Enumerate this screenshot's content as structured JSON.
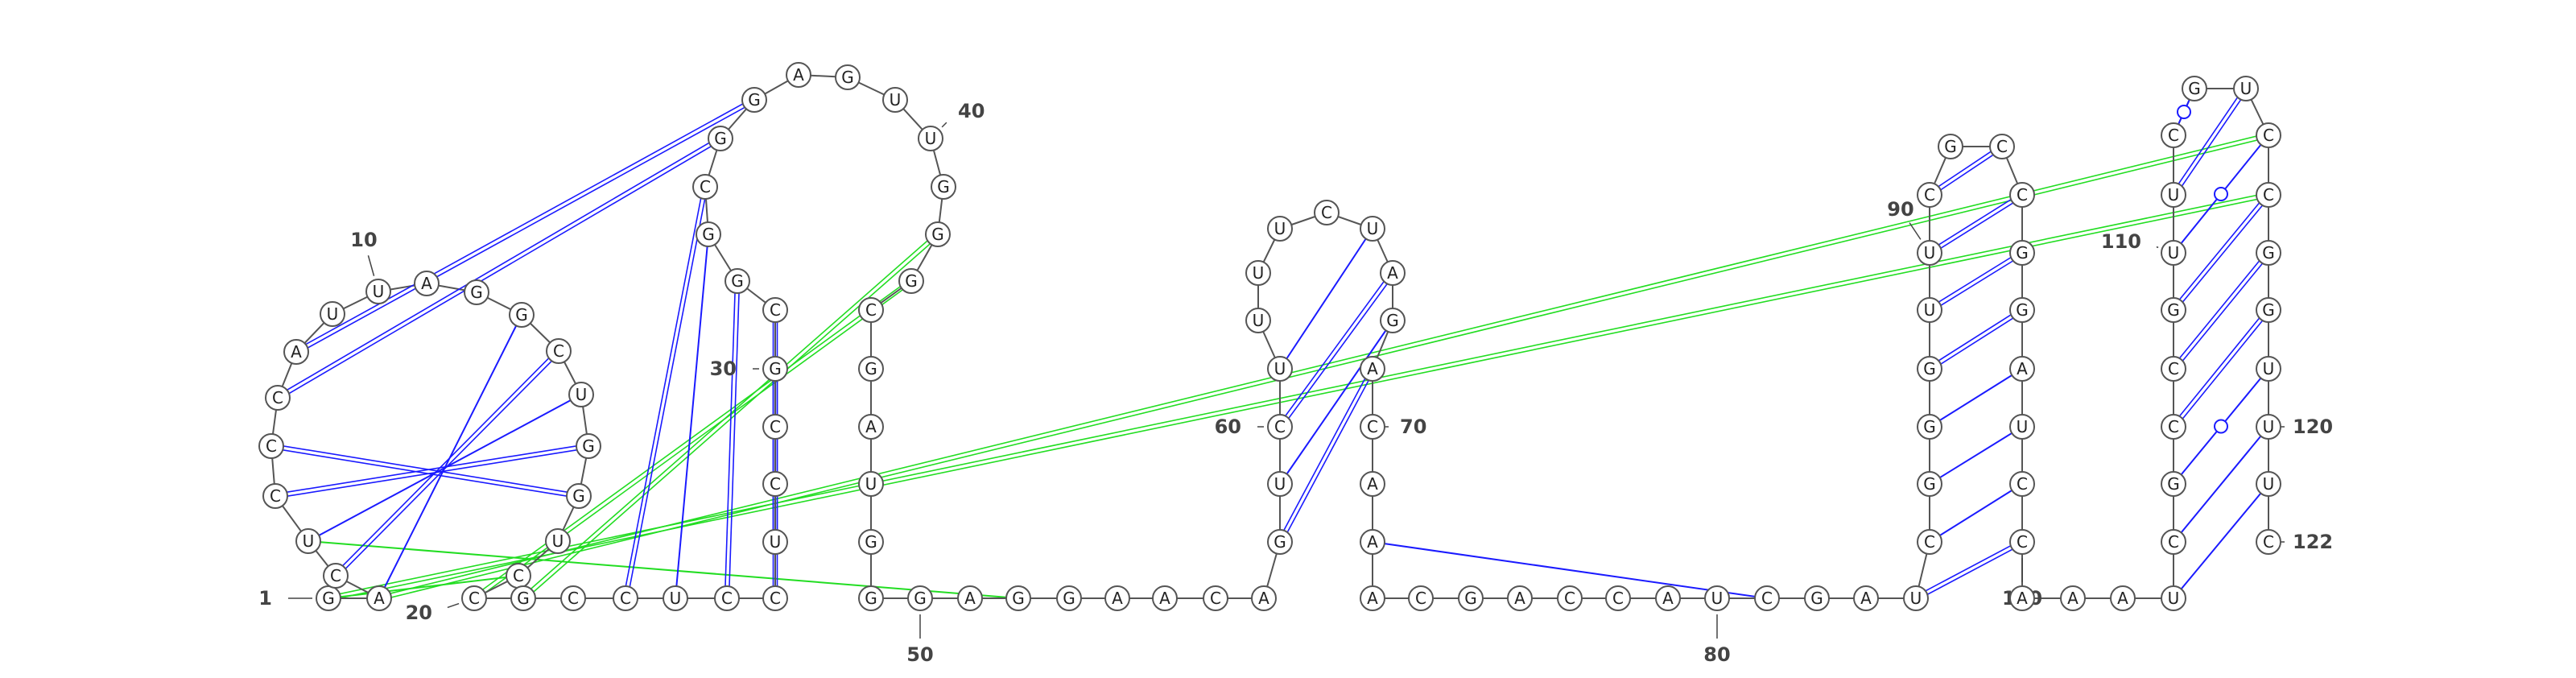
{
  "diagram": {
    "colors": {
      "backbone": "#555555",
      "canonical_pair": "#1a1aff",
      "noncanonical_pair": "#1a1aff",
      "pseudoknot": "#22dd22",
      "nucleotide_fill": "#ffffff",
      "nucleotide_stroke": "#555555",
      "label_text": "#444444"
    },
    "nucleotides": [
      {
        "n": 1,
        "base": "G"
      },
      {
        "n": 2,
        "base": "A"
      },
      {
        "n": 3,
        "base": "C"
      },
      {
        "n": 4,
        "base": "U"
      },
      {
        "n": 5,
        "base": "C"
      },
      {
        "n": 6,
        "base": "C"
      },
      {
        "n": 7,
        "base": "C"
      },
      {
        "n": 8,
        "base": "A"
      },
      {
        "n": 9,
        "base": "U"
      },
      {
        "n": 10,
        "base": "U"
      },
      {
        "n": 11,
        "base": "A"
      },
      {
        "n": 12,
        "base": "G"
      },
      {
        "n": 13,
        "base": "G"
      },
      {
        "n": 14,
        "base": "C"
      },
      {
        "n": 15,
        "base": "U"
      },
      {
        "n": 16,
        "base": "G"
      },
      {
        "n": 17,
        "base": "G"
      },
      {
        "n": 18,
        "base": "U"
      },
      {
        "n": 19,
        "base": "C"
      },
      {
        "n": 20,
        "base": "C"
      },
      {
        "n": 21,
        "base": "G"
      },
      {
        "n": 22,
        "base": "C"
      },
      {
        "n": 23,
        "base": "C"
      },
      {
        "n": 24,
        "base": "U"
      },
      {
        "n": 25,
        "base": "C"
      },
      {
        "n": 26,
        "base": "C"
      },
      {
        "n": 27,
        "base": "U"
      },
      {
        "n": 28,
        "base": "C"
      },
      {
        "n": 29,
        "base": "C"
      },
      {
        "n": 30,
        "base": "G"
      },
      {
        "n": 31,
        "base": "C"
      },
      {
        "n": 32,
        "base": "G"
      },
      {
        "n": 33,
        "base": "G"
      },
      {
        "n": 34,
        "base": "C"
      },
      {
        "n": 35,
        "base": "G"
      },
      {
        "n": 36,
        "base": "G"
      },
      {
        "n": 37,
        "base": "A"
      },
      {
        "n": 38,
        "base": "G"
      },
      {
        "n": 39,
        "base": "U"
      },
      {
        "n": 40,
        "base": "U"
      },
      {
        "n": 41,
        "base": "G"
      },
      {
        "n": 42,
        "base": "G"
      },
      {
        "n": 43,
        "base": "G"
      },
      {
        "n": 44,
        "base": "C"
      },
      {
        "n": 45,
        "base": "G"
      },
      {
        "n": 46,
        "base": "A"
      },
      {
        "n": 47,
        "base": "U"
      },
      {
        "n": 48,
        "base": "G"
      },
      {
        "n": 49,
        "base": "G"
      },
      {
        "n": 50,
        "base": "G"
      },
      {
        "n": 51,
        "base": "A"
      },
      {
        "n": 52,
        "base": "G"
      },
      {
        "n": 53,
        "base": "G"
      },
      {
        "n": 54,
        "base": "A"
      },
      {
        "n": 55,
        "base": "A"
      },
      {
        "n": 56,
        "base": "C"
      },
      {
        "n": 57,
        "base": "A"
      },
      {
        "n": 58,
        "base": "G"
      },
      {
        "n": 59,
        "base": "U"
      },
      {
        "n": 60,
        "base": "C"
      },
      {
        "n": 61,
        "base": "U"
      },
      {
        "n": 62,
        "base": "U"
      },
      {
        "n": 63,
        "base": "U"
      },
      {
        "n": 64,
        "base": "U"
      },
      {
        "n": 65,
        "base": "C"
      },
      {
        "n": 66,
        "base": "U"
      },
      {
        "n": 67,
        "base": "A"
      },
      {
        "n": 68,
        "base": "G"
      },
      {
        "n": 69,
        "base": "A"
      },
      {
        "n": 70,
        "base": "C"
      },
      {
        "n": 71,
        "base": "A"
      },
      {
        "n": 72,
        "base": "A"
      },
      {
        "n": 73,
        "base": "A"
      },
      {
        "n": 74,
        "base": "C"
      },
      {
        "n": 75,
        "base": "G"
      },
      {
        "n": 76,
        "base": "A"
      },
      {
        "n": 77,
        "base": "C"
      },
      {
        "n": 78,
        "base": "C"
      },
      {
        "n": 79,
        "base": "A"
      },
      {
        "n": 80,
        "base": "U"
      },
      {
        "n": 81,
        "base": "C"
      },
      {
        "n": 82,
        "base": "G"
      },
      {
        "n": 83,
        "base": "A"
      },
      {
        "n": 84,
        "base": "U"
      },
      {
        "n": 85,
        "base": "C"
      },
      {
        "n": 86,
        "base": "G"
      },
      {
        "n": 87,
        "base": "G"
      },
      {
        "n": 88,
        "base": "G"
      },
      {
        "n": 89,
        "base": "U"
      },
      {
        "n": 90,
        "base": "U"
      },
      {
        "n": 91,
        "base": "C"
      },
      {
        "n": 92,
        "base": "G"
      },
      {
        "n": 93,
        "base": "C"
      },
      {
        "n": 94,
        "base": "C"
      },
      {
        "n": 95,
        "base": "G"
      },
      {
        "n": 96,
        "base": "G"
      },
      {
        "n": 97,
        "base": "A"
      },
      {
        "n": 98,
        "base": "U"
      },
      {
        "n": 99,
        "base": "C"
      },
      {
        "n": 100,
        "base": "C"
      },
      {
        "n": 101,
        "base": "A"
      },
      {
        "n": 102,
        "base": "A"
      },
      {
        "n": 103,
        "base": "A"
      },
      {
        "n": 104,
        "base": "U"
      },
      {
        "n": 105,
        "base": "C"
      },
      {
        "n": 106,
        "base": "G"
      },
      {
        "n": 107,
        "base": "C"
      },
      {
        "n": 108,
        "base": "C"
      },
      {
        "n": 109,
        "base": "G"
      },
      {
        "n": 110,
        "base": "U"
      },
      {
        "n": 111,
        "base": "U"
      },
      {
        "n": 112,
        "base": "C"
      },
      {
        "n": 113,
        "base": "G"
      },
      {
        "n": 114,
        "base": "U"
      },
      {
        "n": 115,
        "base": "C"
      },
      {
        "n": 116,
        "base": "C"
      },
      {
        "n": 117,
        "base": "G"
      },
      {
        "n": 118,
        "base": "G"
      },
      {
        "n": 119,
        "base": "U"
      },
      {
        "n": 120,
        "base": "U"
      },
      {
        "n": 121,
        "base": "U"
      },
      {
        "n": 122,
        "base": "C"
      }
    ],
    "number_labels": [
      {
        "n": 1,
        "text": "1"
      },
      {
        "n": 10,
        "text": "10"
      },
      {
        "n": 20,
        "text": "20"
      },
      {
        "n": 30,
        "text": "30"
      },
      {
        "n": 40,
        "text": "40"
      },
      {
        "n": 50,
        "text": "50"
      },
      {
        "n": 60,
        "text": "60"
      },
      {
        "n": 70,
        "text": "70"
      },
      {
        "n": 80,
        "text": "80"
      },
      {
        "n": 90,
        "text": "90"
      },
      {
        "n": 100,
        "text": "100"
      },
      {
        "n": 110,
        "text": "110"
      },
      {
        "n": 120,
        "text": "120"
      },
      {
        "n": 122,
        "text": "122"
      }
    ],
    "pairs": [
      {
        "i": 2,
        "j": 13,
        "kind": "single"
      },
      {
        "i": 3,
        "j": 14,
        "kind": "double"
      },
      {
        "i": 4,
        "j": 15,
        "kind": "single"
      },
      {
        "i": 5,
        "j": 16,
        "kind": "double"
      },
      {
        "i": 6,
        "j": 17,
        "kind": "double"
      },
      {
        "i": 7,
        "j": 35,
        "kind": "double"
      },
      {
        "i": 8,
        "j": 36,
        "kind": "double"
      },
      {
        "i": 23,
        "j": 34,
        "kind": "double"
      },
      {
        "i": 24,
        "j": 33,
        "kind": "single"
      },
      {
        "i": 25,
        "j": 32,
        "kind": "double"
      },
      {
        "i": 26,
        "j": 31,
        "kind": "double"
      },
      {
        "i": 27,
        "j": 30,
        "kind": "double"
      },
      {
        "i": 58,
        "j": 69,
        "kind": "double"
      },
      {
        "i": 59,
        "j": 68,
        "kind": "single"
      },
      {
        "i": 60,
        "j": 67,
        "kind": "double"
      },
      {
        "i": 61,
        "j": 66,
        "kind": "single"
      },
      {
        "i": 72,
        "j": 81,
        "kind": "single"
      },
      {
        "i": 84,
        "j": 100,
        "kind": "double"
      },
      {
        "i": 85,
        "j": 99,
        "kind": "single"
      },
      {
        "i": 86,
        "j": 98,
        "kind": "single"
      },
      {
        "i": 87,
        "j": 97,
        "kind": "single"
      },
      {
        "i": 88,
        "j": 96,
        "kind": "double"
      },
      {
        "i": 89,
        "j": 95,
        "kind": "double"
      },
      {
        "i": 90,
        "j": 94,
        "kind": "double"
      },
      {
        "i": 91,
        "j": 93,
        "kind": "double"
      },
      {
        "i": 92,
        "j": 92,
        "kind": "none"
      },
      {
        "i": 104,
        "j": 121,
        "kind": "single"
      },
      {
        "i": 105,
        "j": 120,
        "kind": "single"
      },
      {
        "i": 106,
        "j": 119,
        "kind": "noncanonical"
      },
      {
        "i": 107,
        "j": 118,
        "kind": "double"
      },
      {
        "i": 108,
        "j": 117,
        "kind": "double"
      },
      {
        "i": 109,
        "j": 116,
        "kind": "double"
      },
      {
        "i": 110,
        "j": 115,
        "kind": "noncanonical"
      },
      {
        "i": 111,
        "j": 114,
        "kind": "double"
      },
      {
        "i": 112,
        "j": 113,
        "kind": "noncanonical"
      }
    ],
    "pseudoknots": [
      {
        "i": 1,
        "j": 116,
        "kind": "double"
      },
      {
        "i": 2,
        "j": 115,
        "kind": "double"
      },
      {
        "i": 1,
        "j": 19,
        "kind": "single"
      },
      {
        "i": 4,
        "j": 52,
        "kind": "single"
      },
      {
        "i": 20,
        "j": 43,
        "kind": "double"
      },
      {
        "i": 21,
        "j": 42,
        "kind": "double"
      }
    ]
  }
}
